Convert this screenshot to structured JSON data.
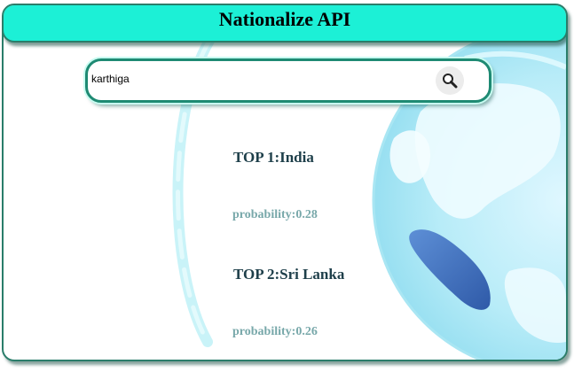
{
  "header": {
    "title": "Nationalize API"
  },
  "search": {
    "value": "karthiga",
    "icon": "search-icon"
  },
  "results": [
    {
      "title": "TOP 1:India",
      "probability": "probability:0.28"
    },
    {
      "title": "TOP 2:Sri Lanka",
      "probability": "probability:0.26"
    }
  ],
  "colors": {
    "header_bg": "#1cf0d6",
    "border": "#2a7d6a",
    "result_title": "#1e3f4a",
    "result_probability": "#78a8aa"
  }
}
